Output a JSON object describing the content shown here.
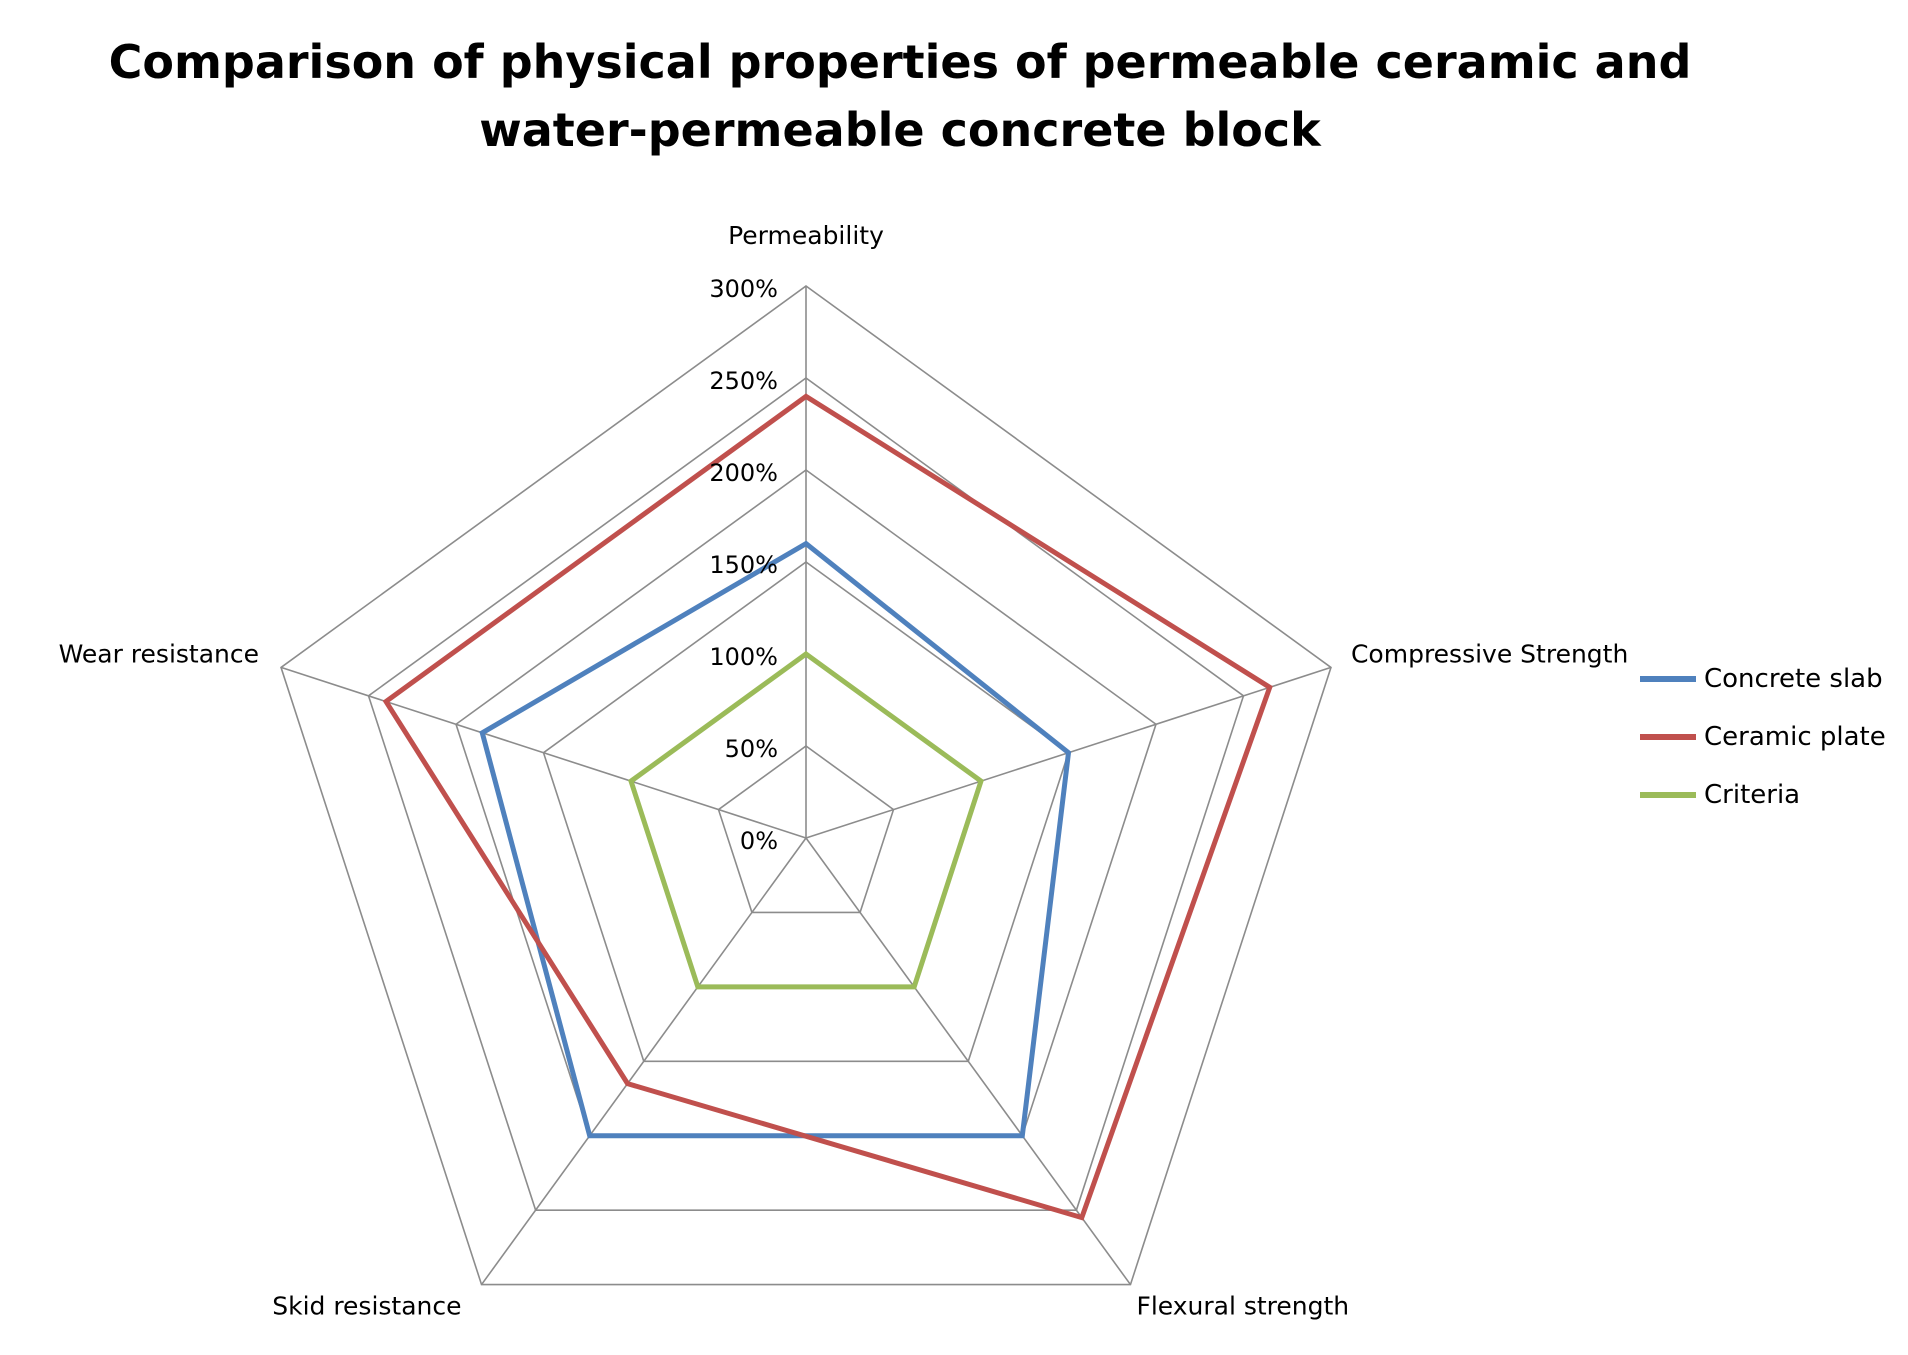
{
  "chart_data": {
    "type": "radar",
    "title": "Comparison of physical properties of permeable ceramic and water-permeable concrete block",
    "categories": [
      "Permeability",
      "Compressive Strength",
      "Flexural strength",
      "Skid resistance",
      "Wear resistance"
    ],
    "r_ticks": [
      "0%",
      "50%",
      "100%",
      "150%",
      "200%",
      "250%",
      "300%"
    ],
    "r_range": [
      0,
      300
    ],
    "grid": true,
    "legend_position": "right",
    "series": [
      {
        "name": "Concrete slab",
        "color": "#4f81bd",
        "values": [
          160,
          150,
          200,
          200,
          185
        ]
      },
      {
        "name": "Ceramic plate",
        "color": "#c0504d",
        "values": [
          240,
          265,
          255,
          165,
          240
        ]
      },
      {
        "name": "Criteria",
        "color": "#9bbb59",
        "values": [
          100,
          100,
          100,
          100,
          100
        ]
      }
    ]
  },
  "colors": {
    "grid": "#8c8c8c"
  }
}
